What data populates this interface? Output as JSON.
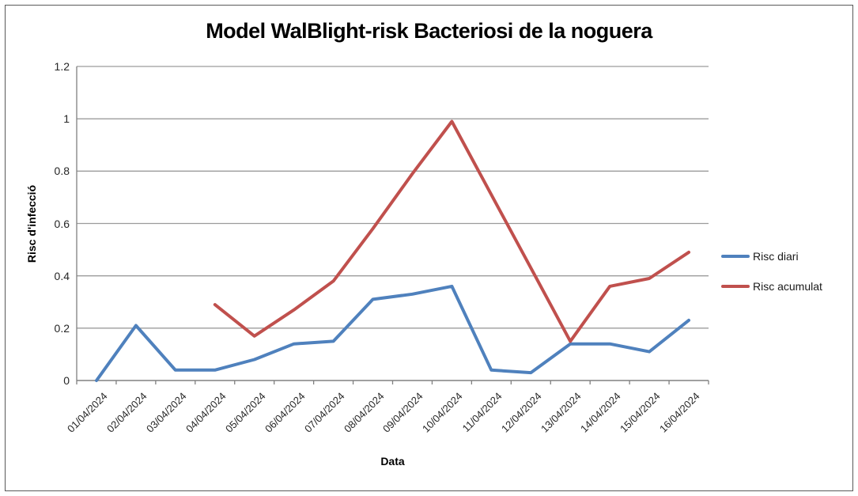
{
  "chart_data": {
    "type": "line",
    "title": "Model WalBlight-risk Bacteriosi de la noguera",
    "xlabel": "Data",
    "ylabel": "Risc d'infecció",
    "ylim": [
      0,
      1.2
    ],
    "yticks": [
      "0",
      "0.2",
      "0.4",
      "0.6",
      "0.8",
      "1",
      "1.2"
    ],
    "grid": true,
    "legend_position": "right",
    "categories": [
      "01/04/2024",
      "02/04/2024",
      "03/04/2024",
      "04/04/2024",
      "05/04/2024",
      "06/04/2024",
      "07/04/2024",
      "08/04/2024",
      "09/04/2024",
      "10/04/2024",
      "11/04/2024",
      "12/04/2024",
      "13/04/2024",
      "14/04/2024",
      "15/04/2024",
      "16/04/2024"
    ],
    "series": [
      {
        "name": "Risc diari",
        "color": "#4F81BD",
        "values": [
          0,
          0.21,
          0.04,
          0.04,
          0.08,
          0.14,
          0.15,
          0.31,
          0.33,
          0.36,
          0.04,
          0.03,
          0.14,
          0.14,
          0.11,
          0.23
        ]
      },
      {
        "name": "Risc acumulat",
        "color": "#C0504D",
        "values": [
          null,
          null,
          null,
          0.29,
          0.17,
          0.27,
          0.38,
          0.58,
          0.79,
          0.99,
          0.71,
          0.43,
          0.15,
          0.36,
          0.39,
          0.49
        ]
      }
    ]
  },
  "colors": {
    "gridline": "#9C9C9C",
    "axis": "#808080",
    "frame_border": "#595959",
    "background": "#FFFFFF",
    "tick_label": "#262626"
  }
}
